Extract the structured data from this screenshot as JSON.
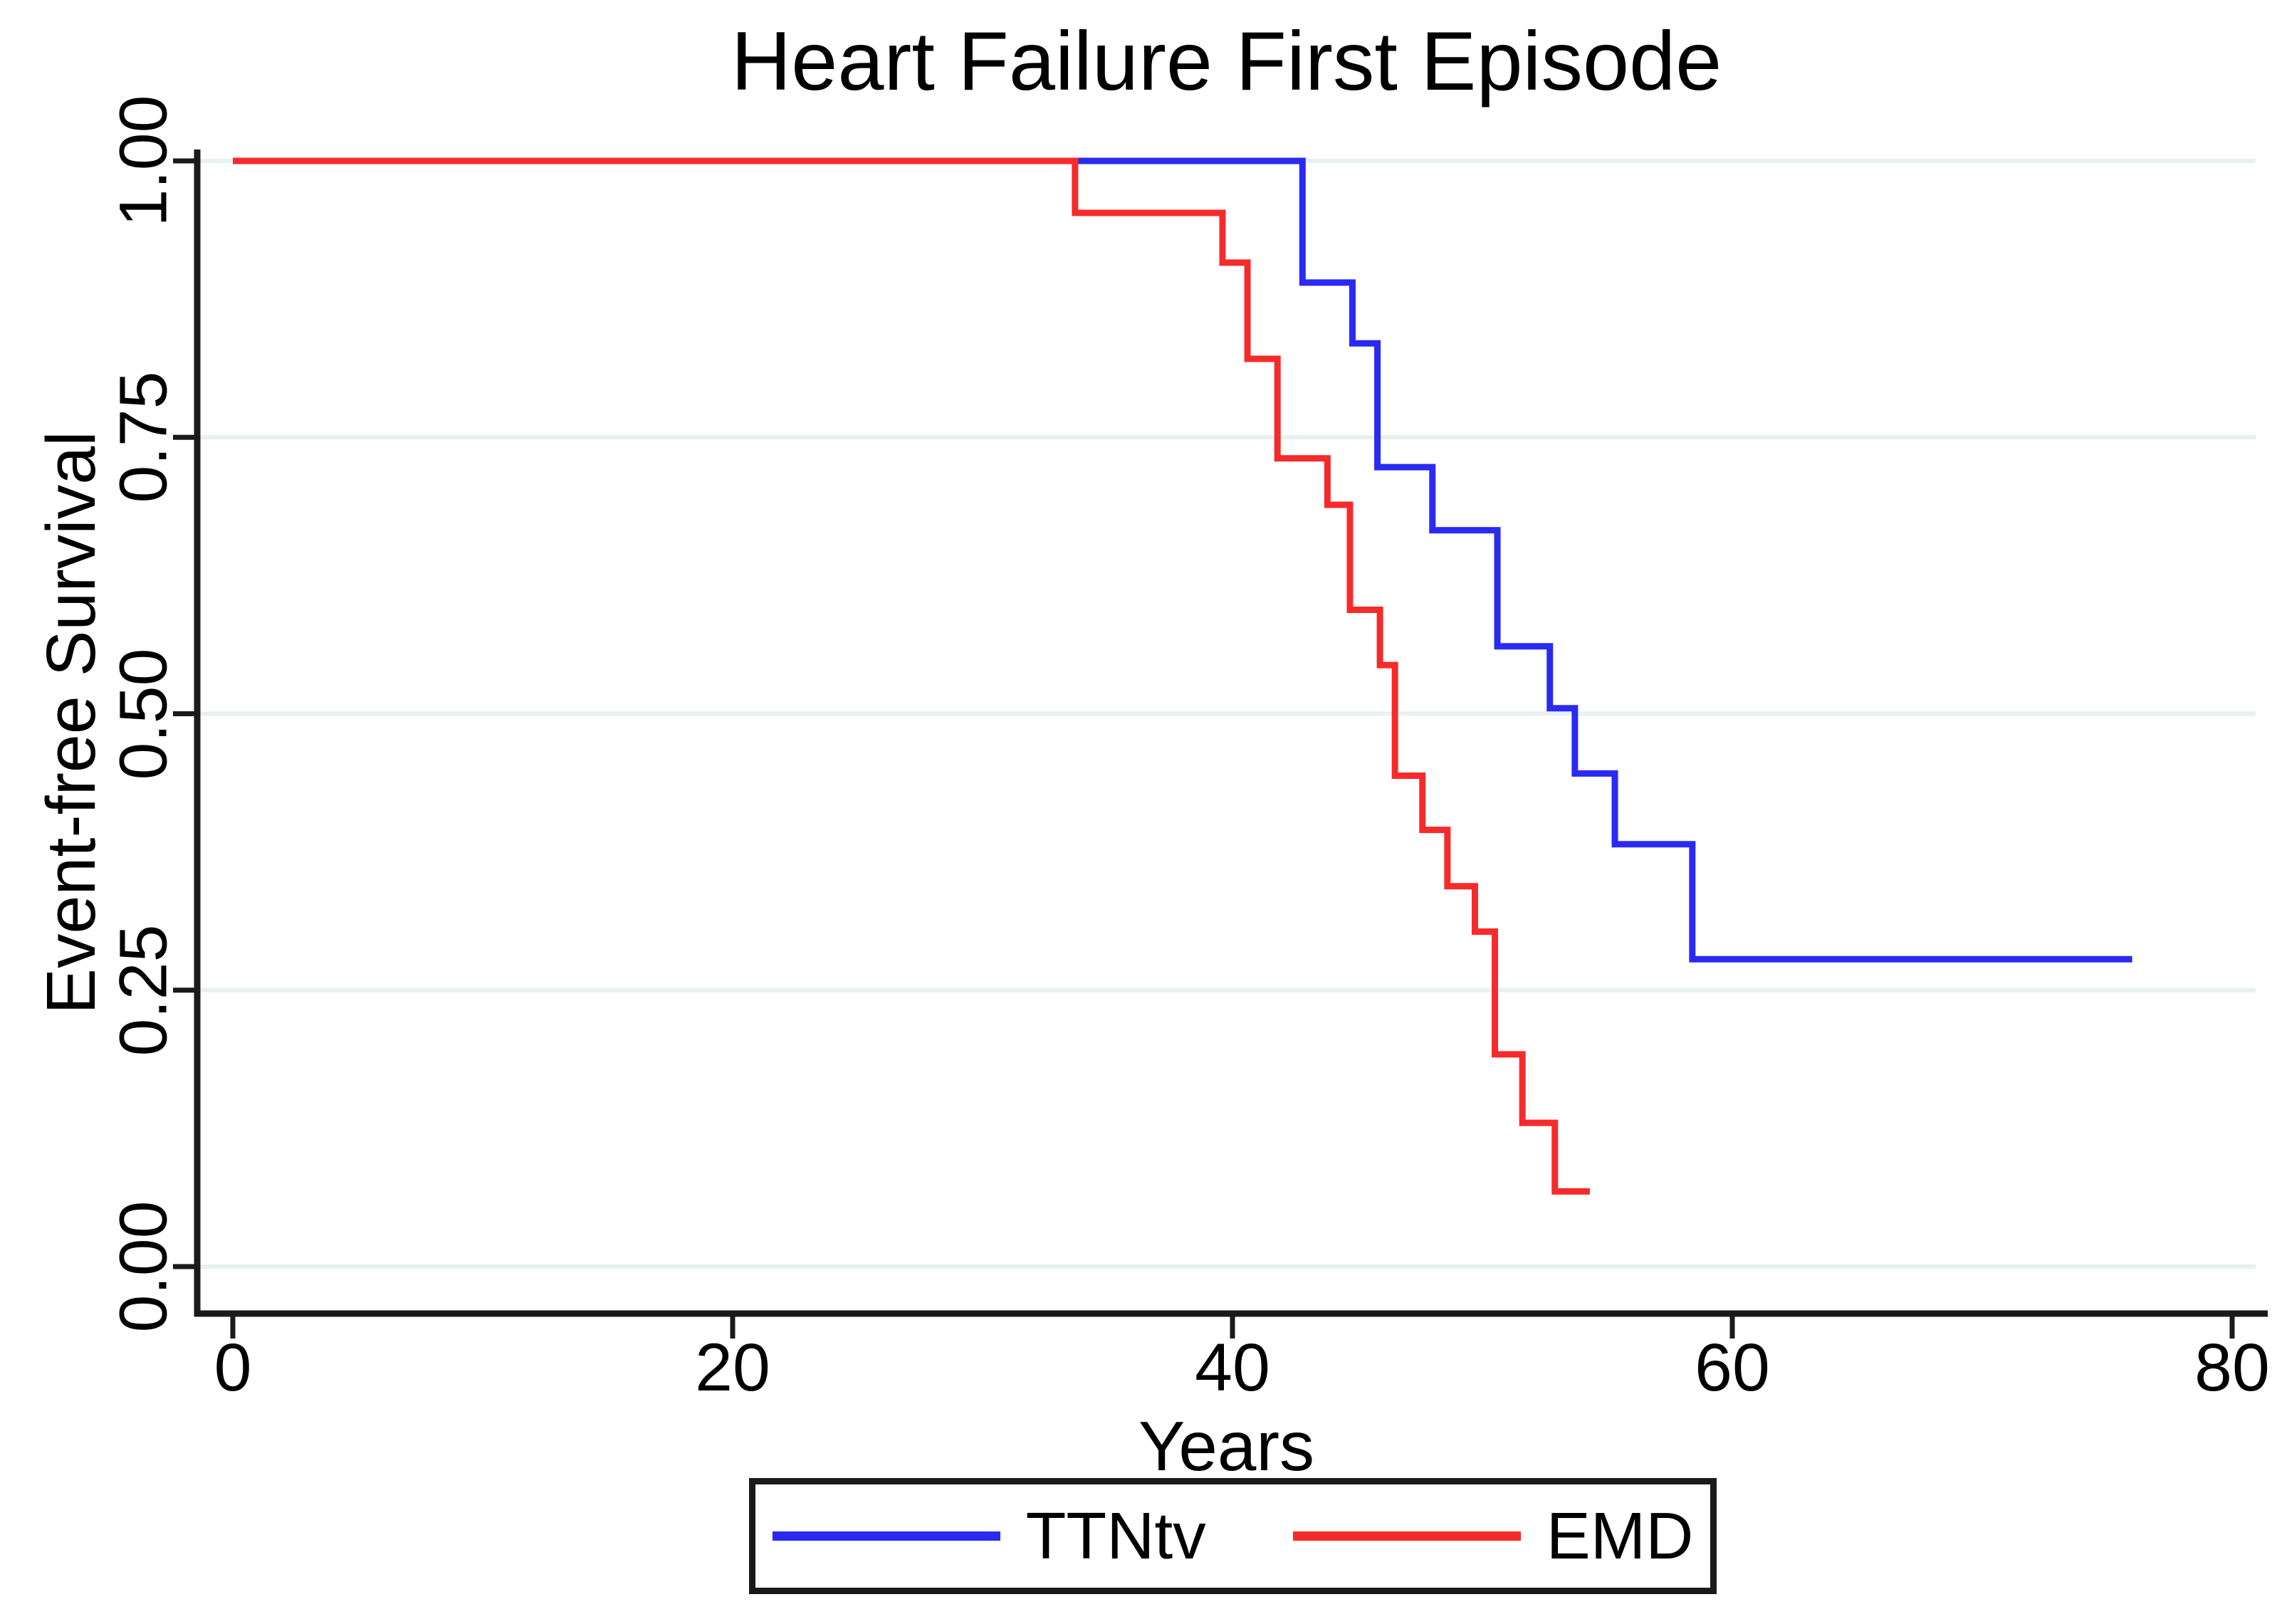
{
  "page": {
    "background": "#ffffff"
  },
  "chart_data": {
    "type": "line",
    "subtype": "kaplan_meier_step",
    "title": "Heart Failure First Episode",
    "xlabel": "Years",
    "ylabel": "Event-free Survival",
    "xlim": [
      0,
      80
    ],
    "ylim": [
      0.0,
      1.0
    ],
    "grid": "horizontal-only",
    "gridline_color": "#e7f1f1",
    "axis_color": "#1a1a1a",
    "legend_position": "bottom-center",
    "x_ticks": [
      {
        "value": 0,
        "label": "0"
      },
      {
        "value": 20,
        "label": "20"
      },
      {
        "value": 40,
        "label": "40"
      },
      {
        "value": 60,
        "label": "60"
      },
      {
        "value": 80,
        "label": "80"
      }
    ],
    "y_ticks": [
      {
        "value": 1.0,
        "label": "1.00"
      },
      {
        "value": 0.75,
        "label": "0.75"
      },
      {
        "value": 0.5,
        "label": "0.50"
      },
      {
        "value": 0.25,
        "label": "0.25"
      },
      {
        "value": 0.0,
        "label": "0.00"
      }
    ],
    "series": [
      {
        "name": "TTNtv",
        "color": "#2a2af2",
        "line_width": 9,
        "steps": [
          [
            0,
            1.0
          ],
          [
            42.8,
            0.89
          ],
          [
            44.8,
            0.835
          ],
          [
            45.8,
            0.723
          ],
          [
            48.0,
            0.666
          ],
          [
            50.6,
            0.561
          ],
          [
            52.7,
            0.505
          ],
          [
            53.7,
            0.446
          ],
          [
            55.3,
            0.382
          ],
          [
            58.4,
            0.278
          ]
        ],
        "end_time": 76.0
      },
      {
        "name": "EMD",
        "color": "#f52b2b",
        "line_width": 9,
        "steps": [
          [
            0,
            1.0
          ],
          [
            33.7,
            0.953
          ],
          [
            39.6,
            0.908
          ],
          [
            40.6,
            0.821
          ],
          [
            41.8,
            0.731
          ],
          [
            43.8,
            0.689
          ],
          [
            44.7,
            0.594
          ],
          [
            45.9,
            0.544
          ],
          [
            46.5,
            0.444
          ],
          [
            47.6,
            0.395
          ],
          [
            48.6,
            0.344
          ],
          [
            49.7,
            0.303
          ],
          [
            50.5,
            0.192
          ],
          [
            51.6,
            0.13
          ],
          [
            52.9,
            0.068
          ]
        ],
        "end_time": 54.3
      }
    ]
  },
  "legend": {
    "items": [
      {
        "label": "TTNtv",
        "color": "#2a2af2"
      },
      {
        "label": "EMD",
        "color": "#f52b2b"
      }
    ]
  }
}
